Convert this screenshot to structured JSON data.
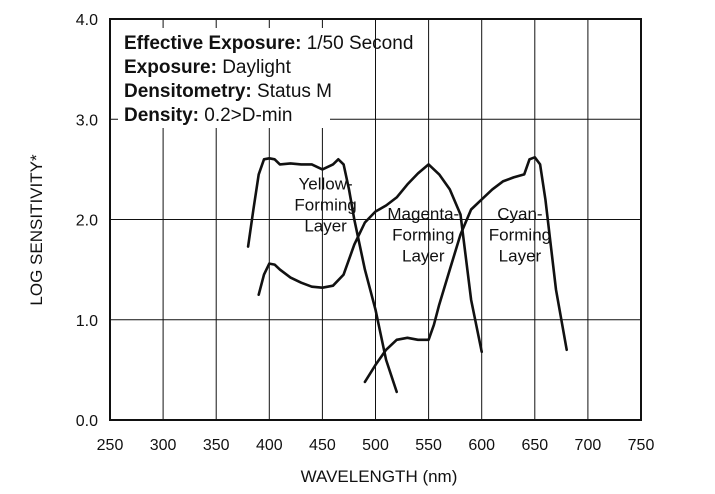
{
  "chart_data": {
    "type": "line",
    "xlabel": "WAVELENGTH (nm)",
    "ylabel": "LOG SENSITIVITY*",
    "xlim": [
      250,
      750
    ],
    "ylim": [
      0.0,
      4.0
    ],
    "x_ticks": [
      "250",
      "300",
      "350",
      "400",
      "450",
      "500",
      "550",
      "600",
      "650",
      "700",
      "750"
    ],
    "y_ticks": [
      "0.0",
      "1.0",
      "2.0",
      "3.0",
      "4.0"
    ],
    "grid": true,
    "info_box": [
      {
        "label": "Effective Exposure:",
        "value": "1/50 Second"
      },
      {
        "label": "Exposure:",
        "value": "Daylight"
      },
      {
        "label": "Densitometry:",
        "value": "Status M"
      },
      {
        "label": "Density:",
        "value": "0.2>D-min"
      }
    ],
    "series": [
      {
        "label_lines": [
          "Yellow-",
          "Forming",
          "Layer"
        ],
        "x": [
          380,
          385,
          390,
          395,
          400,
          405,
          410,
          420,
          430,
          440,
          450,
          460,
          465,
          470,
          475,
          480,
          490,
          500,
          510,
          520
        ],
        "y": [
          1.73,
          2.1,
          2.45,
          2.6,
          2.61,
          2.6,
          2.55,
          2.56,
          2.55,
          2.55,
          2.5,
          2.55,
          2.6,
          2.55,
          2.3,
          2.0,
          1.5,
          1.1,
          0.6,
          0.28
        ]
      },
      {
        "label_lines": [
          "Magenta-",
          "Forming",
          "Layer"
        ],
        "x": [
          390,
          395,
          400,
          405,
          410,
          420,
          430,
          440,
          450,
          460,
          470,
          480,
          490,
          500,
          510,
          520,
          530,
          540,
          550,
          560,
          570,
          580,
          590,
          600
        ],
        "y": [
          1.25,
          1.45,
          1.56,
          1.55,
          1.5,
          1.42,
          1.37,
          1.33,
          1.32,
          1.34,
          1.45,
          1.75,
          1.97,
          2.08,
          2.14,
          2.22,
          2.35,
          2.46,
          2.55,
          2.45,
          2.3,
          2.05,
          1.2,
          0.68
        ]
      },
      {
        "label_lines": [
          "Cyan-",
          "Forming",
          "Layer"
        ],
        "x": [
          490,
          500,
          510,
          520,
          530,
          540,
          550,
          555,
          560,
          570,
          580,
          590,
          600,
          610,
          620,
          630,
          640,
          645,
          650,
          655,
          660,
          670,
          680
        ],
        "y": [
          0.38,
          0.55,
          0.7,
          0.8,
          0.82,
          0.8,
          0.8,
          0.95,
          1.15,
          1.5,
          1.85,
          2.1,
          2.2,
          2.3,
          2.38,
          2.42,
          2.45,
          2.6,
          2.62,
          2.55,
          2.2,
          1.3,
          0.7
        ]
      }
    ]
  }
}
